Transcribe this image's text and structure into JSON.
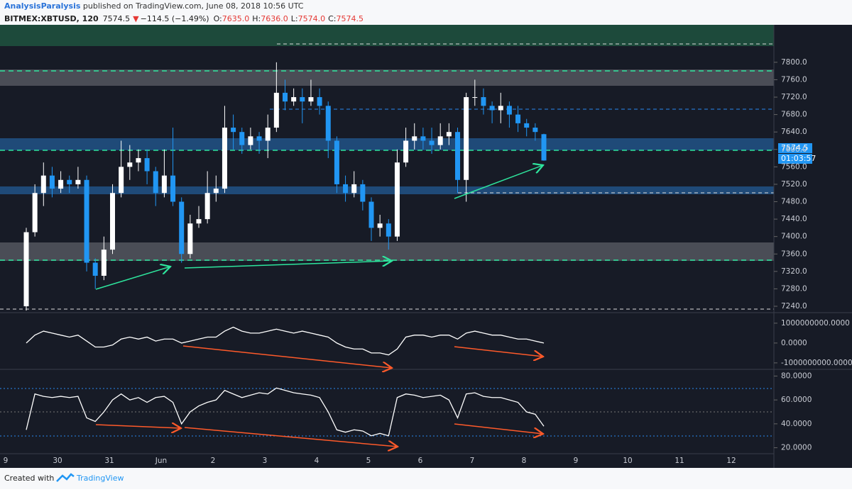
{
  "header": {
    "author": "AnalysisParalysis",
    "text": " published on TradingView.com, June 08, 2018 10:56 UTC"
  },
  "legend": {
    "symbol": "BITMEX:XBTUSD, 120",
    "last": "7574.5",
    "arrow": "▼",
    "change": "−114.5 (−1.49%)",
    "ohlc": [
      {
        "key": "O:",
        "value": "7635.0"
      },
      {
        "key": "H:",
        "value": "7636.0"
      },
      {
        "key": "L:",
        "value": "7574.0"
      },
      {
        "key": "C:",
        "value": "7574.5"
      }
    ]
  },
  "chart_data": [
    {
      "type": "candlestick",
      "up_color": "#ffffff",
      "down_color": "#2196f3",
      "ylim": [
        7227,
        7886
      ],
      "yticks": [
        {
          "value": 7240,
          "label": "7240.0"
        },
        {
          "value": 7280,
          "label": "7280.0"
        },
        {
          "value": 7320,
          "label": "7320.0"
        },
        {
          "value": 7360,
          "label": "7360.0"
        },
        {
          "value": 7400,
          "label": "7400.0"
        },
        {
          "value": 7440,
          "label": "7440.0"
        },
        {
          "value": 7480,
          "label": "7480.0"
        },
        {
          "value": 7520,
          "label": "7520.0"
        },
        {
          "value": 7560,
          "label": "7560.0"
        },
        {
          "value": 7600,
          "label": "7600.0"
        },
        {
          "value": 7640,
          "label": "7640.0"
        },
        {
          "value": 7680,
          "label": "7680.0"
        },
        {
          "value": 7720,
          "label": "7720.0"
        },
        {
          "value": 7760,
          "label": "7760.0"
        },
        {
          "value": 7800,
          "label": "7800.0"
        }
      ],
      "open": [
        7240,
        7410,
        7500,
        7540,
        7510,
        7530,
        7520,
        7530,
        7340,
        7310,
        7370,
        7500,
        7560,
        7570,
        7580,
        7550,
        7500,
        7540,
        7480,
        7360,
        7430,
        7440,
        7500,
        7510,
        7650,
        7640,
        7610,
        7630,
        7620,
        7650,
        7730,
        7710,
        7720,
        7710,
        7720,
        7700,
        7620,
        7520,
        7500,
        7520,
        7480,
        7420,
        7430,
        7400,
        7570,
        7620,
        7630,
        7620,
        7610,
        7630,
        7640,
        7530,
        7720,
        7720,
        7700,
        7690,
        7700,
        7680,
        7660,
        7650,
        7635
      ],
      "high": [
        7420,
        7520,
        7570,
        7560,
        7550,
        7540,
        7560,
        7540,
        7350,
        7400,
        7520,
        7620,
        7610,
        7600,
        7600,
        7560,
        7600,
        7650,
        7490,
        7450,
        7470,
        7550,
        7540,
        7700,
        7680,
        7650,
        7650,
        7640,
        7680,
        7800,
        7760,
        7740,
        7740,
        7760,
        7740,
        7710,
        7630,
        7540,
        7550,
        7530,
        7490,
        7450,
        7440,
        7600,
        7650,
        7660,
        7650,
        7650,
        7660,
        7660,
        7650,
        7730,
        7760,
        7740,
        7710,
        7730,
        7710,
        7700,
        7670,
        7660,
        7636
      ],
      "low": [
        7230,
        7400,
        7470,
        7490,
        7500,
        7500,
        7510,
        7320,
        7280,
        7300,
        7360,
        7490,
        7530,
        7550,
        7520,
        7470,
        7490,
        7470,
        7340,
        7350,
        7420,
        7430,
        7480,
        7500,
        7600,
        7590,
        7600,
        7590,
        7580,
        7640,
        7690,
        7700,
        7660,
        7700,
        7680,
        7580,
        7500,
        7480,
        7490,
        7460,
        7390,
        7400,
        7370,
        7390,
        7560,
        7600,
        7600,
        7590,
        7600,
        7610,
        7500,
        7480,
        7700,
        7680,
        7660,
        7660,
        7650,
        7640,
        7630,
        7620,
        7574
      ],
      "close": [
        7410,
        7500,
        7540,
        7510,
        7530,
        7520,
        7530,
        7340,
        7310,
        7370,
        7500,
        7560,
        7570,
        7580,
        7550,
        7500,
        7540,
        7480,
        7360,
        7430,
        7440,
        7500,
        7510,
        7650,
        7640,
        7610,
        7630,
        7620,
        7650,
        7730,
        7710,
        7720,
        7710,
        7720,
        7700,
        7620,
        7520,
        7500,
        7520,
        7480,
        7420,
        7430,
        7400,
        7570,
        7620,
        7630,
        7620,
        7610,
        7630,
        7640,
        7530,
        7720,
        7720,
        7700,
        7690,
        7700,
        7680,
        7660,
        7650,
        7640,
        7574.5
      ]
    },
    {
      "type": "line",
      "color": "#ffffff",
      "ylim": [
        -1290000000,
        1460000000
      ],
      "yticks": [
        {
          "value": 1000000000,
          "label": "1000000000.0000"
        },
        {
          "value": 0,
          "label": "0.0000"
        },
        {
          "value": -1000000000,
          "label": "-1000000000.0000"
        }
      ],
      "values": [
        0,
        400000000.0,
        600000000.0,
        500000000.0,
        400000000.0,
        300000000.0,
        400000000.0,
        100000000.0,
        -200000000.0,
        -200000000.0,
        -100000000.0,
        200000000.0,
        300000000.0,
        200000000.0,
        300000000.0,
        100000000.0,
        200000000.0,
        200000000.0,
        0,
        100000000.0,
        200000000.0,
        300000000.0,
        300000000.0,
        600000000.0,
        800000000.0,
        600000000.0,
        500000000.0,
        500000000.0,
        600000000.0,
        700000000.0,
        600000000.0,
        500000000.0,
        600000000.0,
        500000000.0,
        400000000.0,
        300000000.0,
        0,
        -200000000.0,
        -300000000.0,
        -300000000.0,
        -500000000.0,
        -500000000.0,
        -600000000.0,
        -300000000.0,
        300000000.0,
        400000000.0,
        400000000.0,
        300000000.0,
        400000000.0,
        400000000.0,
        200000000.0,
        500000000.0,
        600000000.0,
        500000000.0,
        400000000.0,
        400000000.0,
        300000000.0,
        200000000.0,
        200000000.0,
        100000000.0,
        0
      ]
    },
    {
      "type": "line",
      "color": "#ffffff",
      "ylim": [
        15,
        85
      ],
      "yticks": [
        {
          "value": 80,
          "label": "80.0000"
        },
        {
          "value": 60,
          "label": "60.0000"
        },
        {
          "value": 40,
          "label": "40.0000"
        },
        {
          "value": 20,
          "label": "20.0000"
        }
      ],
      "values": [
        35,
        65,
        63,
        62,
        63,
        62,
        63,
        45,
        42,
        50,
        60,
        65,
        60,
        62,
        58,
        62,
        63,
        58,
        40,
        50,
        55,
        58,
        60,
        68,
        65,
        62,
        64,
        66,
        65,
        70,
        68,
        66,
        65,
        64,
        62,
        50,
        35,
        33,
        35,
        34,
        30,
        32,
        30,
        62,
        65,
        64,
        62,
        63,
        64,
        60,
        45,
        65,
        66,
        63,
        62,
        62,
        60,
        58,
        50,
        48,
        38
      ]
    }
  ],
  "xaxis": {
    "labels": [
      "9",
      "30",
      "31",
      "Jun",
      "2",
      "3",
      "4",
      "5",
      "6",
      "7",
      "8",
      "9",
      "10",
      "11",
      "12"
    ]
  },
  "price_label": "7574.5",
  "countdown": "01:03:57",
  "footer": {
    "text": "Created with",
    "brand": "TradingView"
  }
}
